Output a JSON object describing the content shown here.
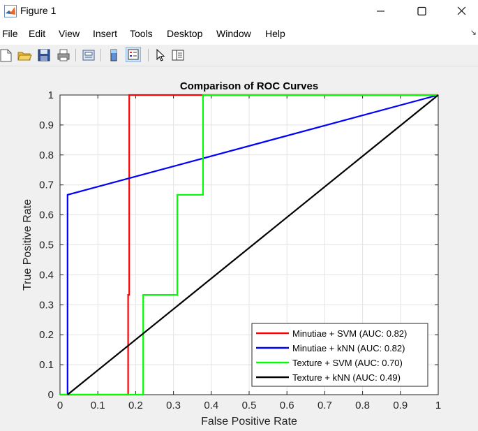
{
  "window": {
    "title": "Figure 1",
    "minimize_icon": "minimize-icon",
    "maximize_icon": "maximize-icon",
    "close_icon": "close-icon"
  },
  "menu": {
    "items": [
      "File",
      "Edit",
      "View",
      "Insert",
      "Tools",
      "Desktop",
      "Window",
      "Help"
    ]
  },
  "toolbar": {
    "icons": [
      "new-figure-icon",
      "open-file-icon",
      "save-icon",
      "print-icon",
      "print-preview-icon",
      "colorbar-icon",
      "legend-icon",
      "pointer-icon",
      "property-editor-icon"
    ]
  },
  "chart_data": {
    "type": "line",
    "title": "Comparison of ROC Curves",
    "xlabel": "False Positive Rate",
    "ylabel": "True Positive Rate",
    "xlim": [
      0,
      1
    ],
    "ylim": [
      0,
      1
    ],
    "xticks": [
      "0",
      "0.1",
      "0.2",
      "0.3",
      "0.4",
      "0.5",
      "0.6",
      "0.7",
      "0.8",
      "0.9",
      "1"
    ],
    "yticks": [
      "0",
      "0.1",
      "0.2",
      "0.3",
      "0.4",
      "0.5",
      "0.6",
      "0.7",
      "0.8",
      "0.9",
      "1"
    ],
    "grid": true,
    "legend_position": "bottom-right",
    "series": [
      {
        "name": "Minutiae + SVM (AUC: 0.82)",
        "color": "#ff0000",
        "x": [
          0,
          0.18,
          0.18,
          0.183,
          0.183,
          0.38,
          1
        ],
        "y": [
          0,
          0,
          0.333,
          0.333,
          1,
          1,
          1
        ]
      },
      {
        "name": "Minutiae + kNN (AUC: 0.82)",
        "color": "#0000ff",
        "x": [
          0.02,
          0.02,
          1
        ],
        "y": [
          0,
          0.667,
          1
        ]
      },
      {
        "name": "Texture + SVM (AUC: 0.70)",
        "color": "#00ff00",
        "x": [
          0,
          0.22,
          0.22,
          0.31,
          0.31,
          0.378,
          0.378,
          1
        ],
        "y": [
          0,
          0,
          0.333,
          0.333,
          0.667,
          0.667,
          1,
          1
        ]
      },
      {
        "name": "Texture + kNN (AUC: 0.49)",
        "color": "#000000",
        "x": [
          0.02,
          1
        ],
        "y": [
          0,
          1
        ]
      }
    ]
  }
}
